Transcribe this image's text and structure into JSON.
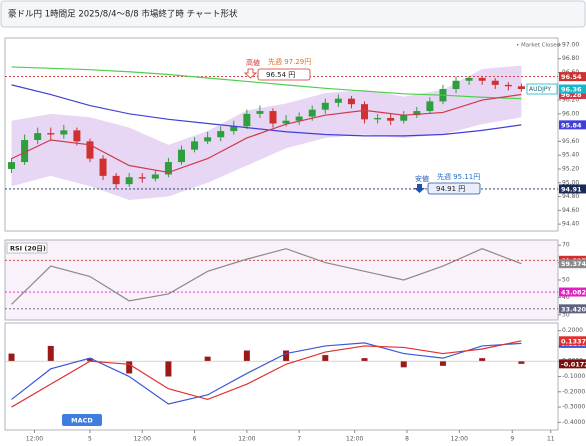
{
  "header": {
    "title": "豪ドル円 1時間足 2025/8/4～8/8 市場終了時 チャート形状"
  },
  "chart_data": [
    {
      "type": "candlestick",
      "status": "• Market Closed",
      "up_color": "#2e9e3e",
      "down_color": "#d03030",
      "open": [
        95.2,
        95.3,
        95.62,
        95.72,
        95.7,
        95.76,
        95.6,
        95.35,
        95.1,
        94.98,
        95.08,
        95.06,
        95.12,
        95.3,
        95.48,
        95.6,
        95.66,
        95.75,
        95.82,
        96.0,
        96.04,
        95.86,
        95.9,
        95.96,
        96.06,
        96.16,
        96.22,
        96.14,
        95.92,
        95.94,
        95.9,
        95.98,
        96.04,
        96.18,
        96.36,
        96.48,
        96.52,
        96.48,
        96.42,
        96.4
      ],
      "high": [
        95.36,
        95.7,
        95.8,
        95.8,
        95.84,
        95.8,
        95.64,
        95.4,
        95.14,
        95.14,
        95.14,
        95.18,
        95.36,
        95.54,
        95.66,
        95.74,
        95.82,
        95.9,
        96.06,
        96.12,
        96.08,
        95.98,
        96.02,
        96.12,
        96.22,
        96.28,
        96.26,
        96.18,
        96.0,
        96.0,
        96.04,
        96.1,
        96.24,
        96.42,
        96.54,
        96.54,
        96.54,
        96.52,
        96.46,
        96.44
      ],
      "low": [
        95.14,
        95.26,
        95.56,
        95.62,
        95.64,
        95.54,
        95.3,
        95.04,
        94.91,
        94.94,
        95.0,
        95.02,
        95.08,
        95.26,
        95.44,
        95.56,
        95.6,
        95.7,
        95.78,
        95.94,
        95.8,
        95.82,
        95.84,
        95.9,
        96.0,
        96.1,
        96.08,
        95.86,
        95.86,
        95.84,
        95.86,
        95.94,
        96.0,
        96.14,
        96.3,
        96.42,
        96.42,
        96.36,
        96.34,
        96.32
      ],
      "close": [
        95.3,
        95.62,
        95.72,
        95.7,
        95.76,
        95.6,
        95.35,
        95.1,
        94.98,
        95.08,
        95.06,
        95.12,
        95.3,
        95.48,
        95.6,
        95.66,
        95.75,
        95.82,
        96.0,
        96.04,
        95.86,
        95.9,
        95.96,
        96.06,
        96.16,
        96.22,
        96.14,
        95.92,
        95.94,
        95.9,
        95.98,
        96.04,
        96.18,
        96.36,
        96.48,
        96.52,
        96.48,
        96.42,
        96.4,
        96.36
      ],
      "xlim": [
        -0.5,
        41.8
      ],
      "ylim": [
        94.3,
        97.1
      ],
      "yticks": [
        {
          "value": 97,
          "label": "97.00"
        },
        {
          "value": 96.8,
          "label": "96.80"
        },
        {
          "value": 96.6,
          "label": "96.60"
        },
        {
          "value": 96.2,
          "label": "96.20"
        },
        {
          "value": 96,
          "label": "96.00"
        },
        {
          "value": 95.6,
          "label": "95.60"
        },
        {
          "value": 95.4,
          "label": "95.40"
        },
        {
          "value": 95.2,
          "label": "95.20"
        },
        {
          "value": 95,
          "label": "95.00"
        },
        {
          "value": 94.8,
          "label": "94.80"
        },
        {
          "value": 94.6,
          "label": "94.60"
        },
        {
          "value": 94.4,
          "label": "94.40"
        }
      ],
      "ma_x": [
        0,
        3,
        6,
        9,
        12,
        15,
        18,
        21,
        24,
        27,
        30,
        33,
        36,
        39
      ],
      "band": {
        "color": "#c9a6e8",
        "upper": [
          95.9,
          96.0,
          95.95,
          95.8,
          95.55,
          95.75,
          96.05,
          96.15,
          96.3,
          96.35,
          96.25,
          96.35,
          96.65,
          96.7
        ],
        "lower": [
          94.95,
          95.1,
          94.95,
          94.75,
          94.8,
          95.0,
          95.25,
          95.5,
          95.65,
          95.7,
          95.65,
          95.7,
          95.85,
          95.95
        ]
      },
      "series": [
        {
          "color": "#4cd04c",
          "values": [
            96.68,
            96.66,
            96.64,
            96.61,
            96.57,
            96.52,
            96.47,
            96.42,
            96.37,
            96.33,
            96.29,
            96.27,
            96.24,
            96.22
          ]
        },
        {
          "color": "#4040d8",
          "axis_tag": true,
          "values": [
            96.42,
            96.28,
            96.12,
            96.0,
            95.92,
            95.86,
            95.8,
            95.74,
            95.7,
            95.68,
            95.68,
            95.7,
            95.76,
            95.84
          ]
        },
        {
          "color": "#d03a4a",
          "axis_tag": true,
          "values": [
            95.35,
            95.62,
            95.55,
            95.25,
            95.15,
            95.35,
            95.65,
            95.85,
            95.98,
            96.05,
            95.98,
            96.02,
            96.2,
            96.28
          ]
        }
      ],
      "levels": [
        {
          "value": 96.54,
          "color": "#d03030"
        },
        {
          "value": 94.91,
          "color": "#1a2a5a"
        }
      ],
      "current": {
        "value": 96.36,
        "tag": "AUDJPY",
        "color": "#19b5c8"
      },
      "annotations": {
        "high": "高値",
        "high_prev": "先週 97.29円",
        "high_box": "96.54 円",
        "low": "安値",
        "low_prev": "先週 95.11円",
        "low_box": "94.91 円"
      }
    },
    {
      "type": "rsi",
      "title": "RSI (20日)",
      "xlim": [
        -0.5,
        41.8
      ],
      "ylim": [
        27,
        73
      ],
      "yticks": [
        30,
        40,
        50,
        60,
        70
      ],
      "ma_x": [
        0,
        3,
        6,
        9,
        12,
        15,
        18,
        21,
        24,
        27,
        30,
        33,
        36,
        39
      ],
      "series": [
        {
          "color": "#8a8a8a",
          "axis_tag": true,
          "values": [
            36,
            58,
            52,
            38,
            42,
            55,
            62,
            68,
            60,
            55,
            50,
            58,
            68,
            59.3742
          ]
        }
      ],
      "levels": [
        {
          "value": {
            "value": 61.327,
            "label": "61.3270"
          },
          "color": "#d03030"
        },
        {
          "value": 43.0822,
          "color": "#e020c0"
        },
        {
          "value": 33.4206,
          "color": "#606080"
        }
      ]
    },
    {
      "type": "macd",
      "title": "MACD",
      "xlim": [
        -0.5,
        41.8
      ],
      "ylim": [
        -0.45,
        0.25
      ],
      "yticks": [
        {
          "value": 0.2,
          "label": "0.2000"
        },
        {
          "value": 0.1,
          "label": "0.1000"
        },
        {
          "value": 0,
          "label": "0.0000"
        },
        {
          "value": -0.1,
          "label": "-0.1000"
        },
        {
          "value": -0.2,
          "label": "-0.2000"
        },
        {
          "value": -0.3,
          "label": "-0.3000"
        },
        {
          "value": -0.4,
          "label": "-0.4000"
        }
      ],
      "xticks": [
        {
          "value": 1.75,
          "label": "12:00"
        },
        {
          "value": 6,
          "label": "5"
        },
        {
          "value": 10,
          "label": "12:00"
        },
        {
          "value": 14,
          "label": "6"
        },
        {
          "value": 18,
          "label": "12:00"
        },
        {
          "value": 22,
          "label": "7"
        },
        {
          "value": 26.25,
          "label": "12:00"
        },
        {
          "value": 30.25,
          "label": "8"
        },
        {
          "value": 34.25,
          "label": "12:00"
        },
        {
          "value": 38.3,
          "label": "9"
        },
        {
          "value": 41.25,
          "label": "11"
        }
      ],
      "ma_x": [
        0,
        3,
        6,
        9,
        12,
        15,
        18,
        21,
        24,
        27,
        30,
        33,
        36,
        39
      ],
      "histogram": {
        "color": "#9a1a1a",
        "values": [
          0.05,
          0.1,
          0.02,
          -0.08,
          -0.1,
          0.03,
          0.07,
          0.07,
          0.04,
          0.02,
          -0.04,
          -0.03,
          0.02,
          -0.0172
        ]
      },
      "series": [
        {
          "color": "#3a5ad8",
          "axis_tag": true,
          "values": [
            -0.25,
            -0.05,
            0.02,
            -0.1,
            -0.28,
            -0.22,
            -0.08,
            0.05,
            0.1,
            0.12,
            0.05,
            0.02,
            0.1,
            0.1165
          ]
        },
        {
          "color": "#e03030",
          "axis_tag": true,
          "values": [
            -0.3,
            -0.15,
            0.0,
            -0.02,
            -0.18,
            -0.25,
            -0.15,
            -0.02,
            0.06,
            0.1,
            0.09,
            0.05,
            0.08,
            0.1337
          ]
        }
      ]
    }
  ]
}
